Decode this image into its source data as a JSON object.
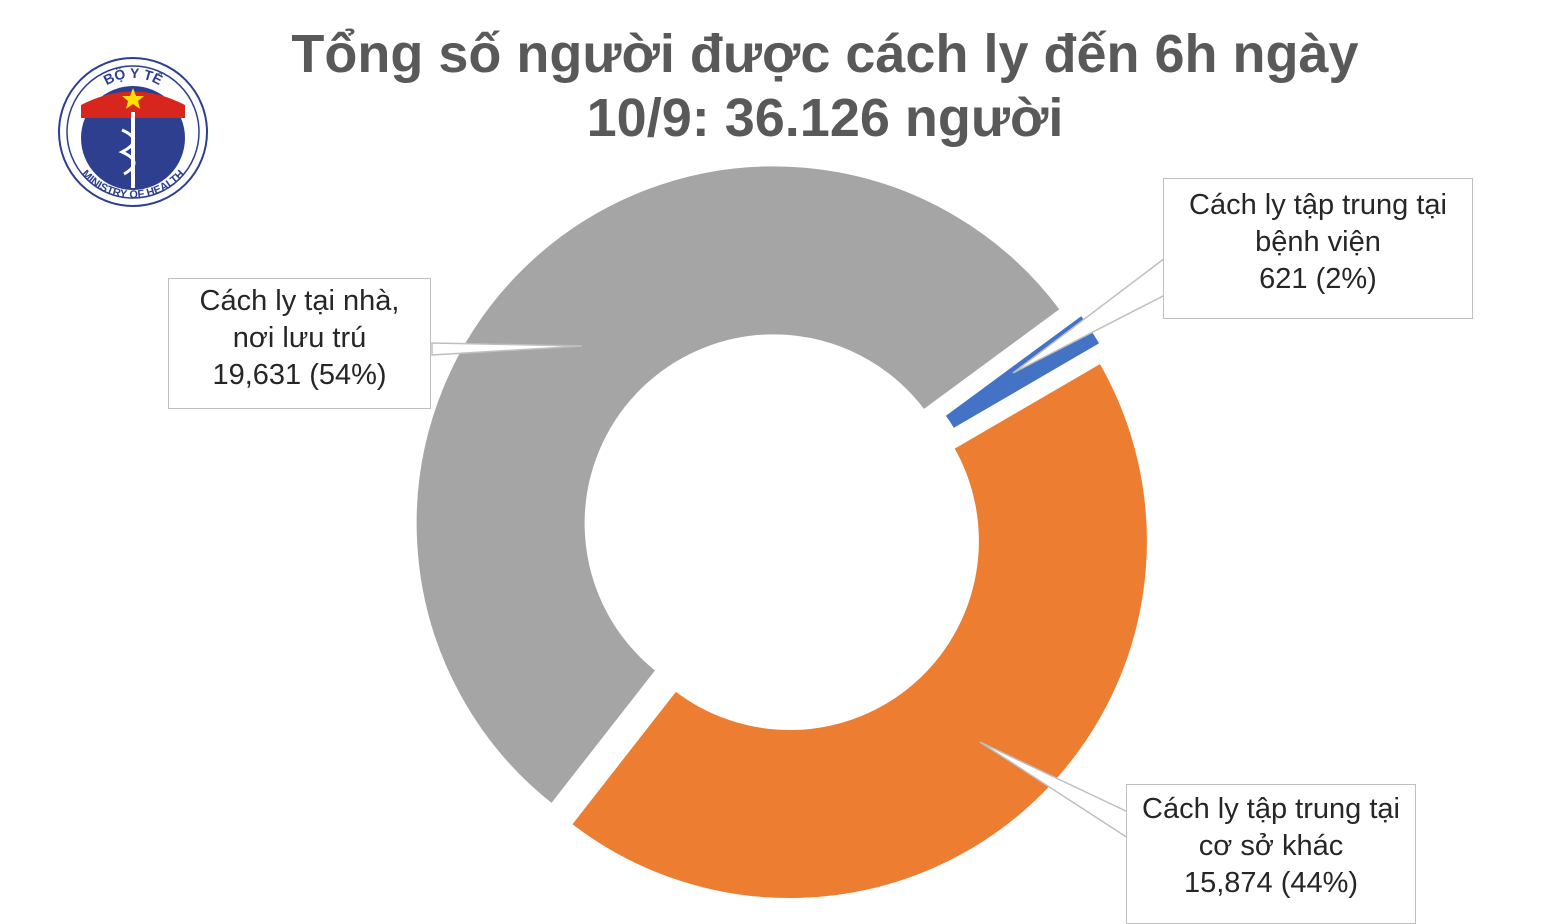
{
  "logo": {
    "top": "BỘ Y TẾ",
    "bottom": "MINISTRY OF HEALTH"
  },
  "chart_data": {
    "type": "donut",
    "title": "Tổng số người được cách ly đến 6h ngày 10/9: 36.126 người",
    "categories": [
      "Cách ly tại nhà, nơi lưu trú",
      "Cách ly tập trung tại bệnh viện",
      "Cách ly tập trung tại cơ sở khác"
    ],
    "values": [
      19631,
      621,
      15874
    ],
    "value_labels": [
      "19,631 (54%)",
      "621 (2%)",
      "15,874 (44%)"
    ],
    "colors": [
      "#a5a5a5",
      "#4472c4",
      "#ed7d31"
    ]
  }
}
